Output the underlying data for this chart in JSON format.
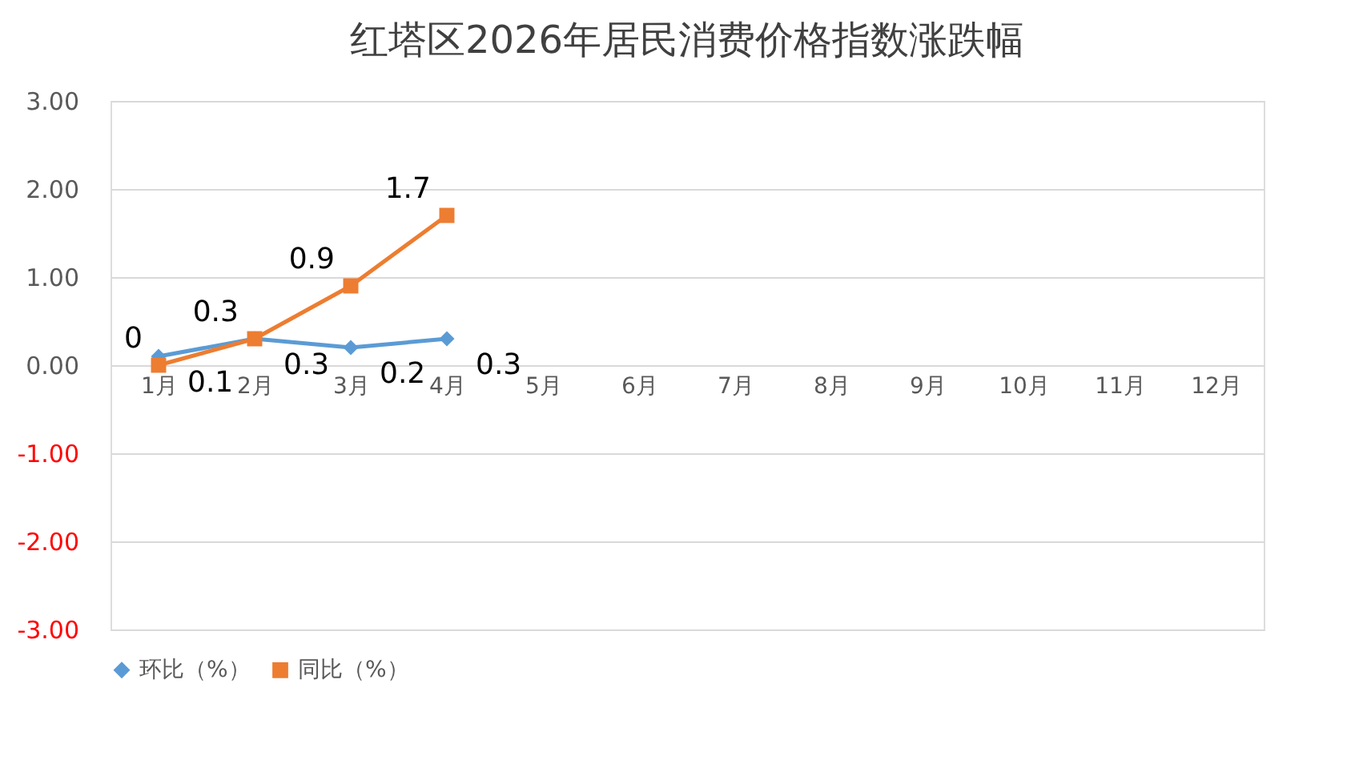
{
  "chart_data": {
    "type": "line",
    "title": "红塔区2026年居民消费价格指数涨跌幅",
    "categories": [
      "1月",
      "2月",
      "3月",
      "4月",
      "5月",
      "6月",
      "7月",
      "8月",
      "9月",
      "10月",
      "11月",
      "12月"
    ],
    "series": [
      {
        "name": "环比（%）",
        "color": "#5b9bd5",
        "marker": "diamond",
        "values": [
          0.1,
          0.3,
          0.2,
          0.3,
          null,
          null,
          null,
          null,
          null,
          null,
          null,
          null
        ]
      },
      {
        "name": "同比（%）",
        "color": "#ed7d31",
        "marker": "square",
        "values": [
          0,
          0.3,
          0.9,
          1.7,
          null,
          null,
          null,
          null,
          null,
          null,
          null,
          null
        ]
      }
    ],
    "ylim": [
      -3,
      3
    ],
    "yticks": [
      {
        "value": -3,
        "label": "-3.00"
      },
      {
        "value": -2,
        "label": "-2.00"
      },
      {
        "value": -1,
        "label": "-1.00"
      },
      {
        "value": 0,
        "label": "0.00"
      },
      {
        "value": 1,
        "label": "1.00"
      },
      {
        "value": 2,
        "label": "2.00"
      },
      {
        "value": 3,
        "label": "3.00"
      }
    ],
    "grid": "y",
    "legend": "bottom",
    "data_labels": true
  }
}
